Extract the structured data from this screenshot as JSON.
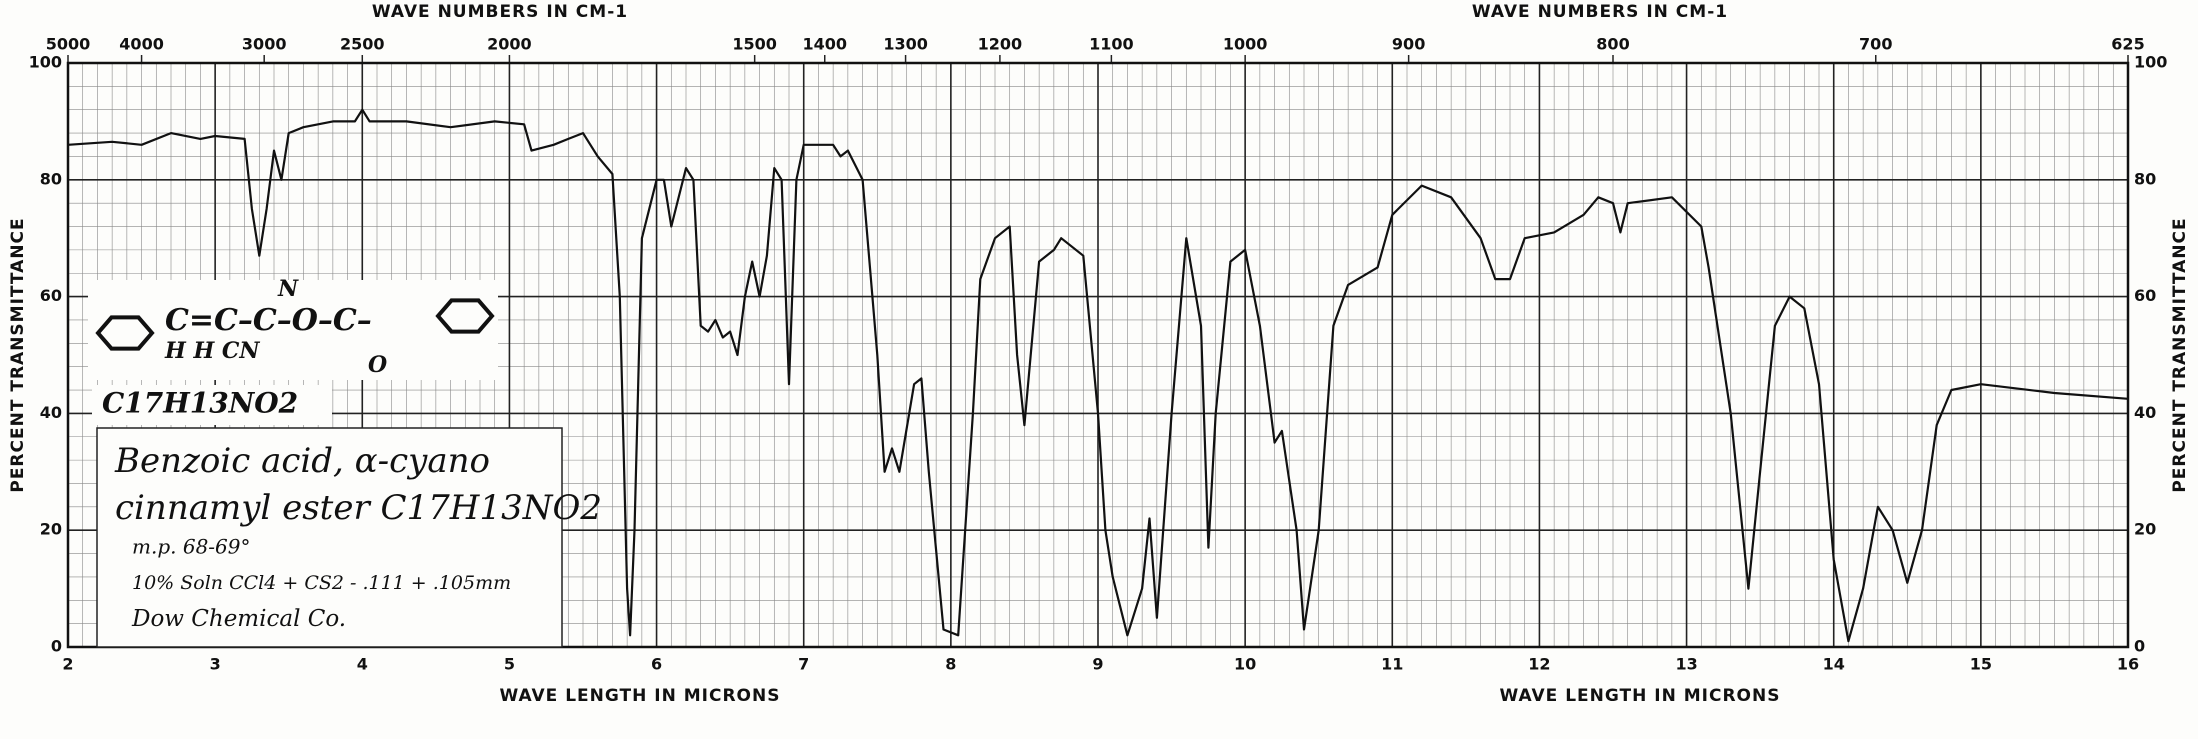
{
  "chart_data": {
    "type": "line",
    "x_label": "WAVE LENGTH IN MICRONS",
    "x2_label": "WAVE NUMBERS IN CM-1",
    "y_label": "PERCENT TRANSMITTANCE",
    "xlim": [
      2,
      16
    ],
    "xticks": [
      2,
      3,
      4,
      5,
      6,
      7,
      8,
      9,
      10,
      11,
      12,
      13,
      14,
      15,
      16
    ],
    "x2lim": [
      5000,
      625
    ],
    "x2ticks": [
      5000,
      4000,
      3000,
      2500,
      2000,
      1500,
      1400,
      1300,
      1200,
      1100,
      1000,
      900,
      800,
      700,
      625
    ],
    "ylim": [
      0,
      100
    ],
    "yticks": [
      0,
      20,
      40,
      60,
      80,
      100
    ],
    "grid": true,
    "color": "#111111",
    "x": [
      2.0,
      2.3,
      2.5,
      2.7,
      2.9,
      3.0,
      3.2,
      3.25,
      3.3,
      3.35,
      3.4,
      3.45,
      3.5,
      3.6,
      3.8,
      3.95,
      4.0,
      4.05,
      4.3,
      4.6,
      4.9,
      5.1,
      5.15,
      5.3,
      5.4,
      5.5,
      5.6,
      5.7,
      5.75,
      5.8,
      5.82,
      5.85,
      5.9,
      6.0,
      6.05,
      6.1,
      6.2,
      6.25,
      6.3,
      6.35,
      6.4,
      6.45,
      6.5,
      6.55,
      6.6,
      6.65,
      6.7,
      6.75,
      6.8,
      6.85,
      6.9,
      6.95,
      7.0,
      7.2,
      7.25,
      7.3,
      7.4,
      7.5,
      7.55,
      7.6,
      7.65,
      7.75,
      7.8,
      7.85,
      7.95,
      8.05,
      8.15,
      8.2,
      8.3,
      8.4,
      8.45,
      8.5,
      8.6,
      8.7,
      8.75,
      8.9,
      9.0,
      9.05,
      9.1,
      9.2,
      9.3,
      9.35,
      9.4,
      9.5,
      9.6,
      9.7,
      9.75,
      9.8,
      9.9,
      10.0,
      10.1,
      10.2,
      10.25,
      10.35,
      10.4,
      10.5,
      10.6,
      10.7,
      10.9,
      11.0,
      11.2,
      11.4,
      11.6,
      11.7,
      11.8,
      11.9,
      12.1,
      12.3,
      12.4,
      12.5,
      12.55,
      12.6,
      12.9,
      13.1,
      13.15,
      13.3,
      13.42,
      13.5,
      13.6,
      13.7,
      13.8,
      13.9,
      14.0,
      14.1,
      14.2,
      14.3,
      14.4,
      14.5,
      14.6,
      14.7,
      14.8,
      15.0,
      15.5,
      16.0
    ],
    "values": [
      86,
      86.5,
      86,
      88,
      87,
      87.5,
      87,
      75,
      67,
      75,
      85,
      80,
      88,
      89,
      90,
      90,
      92,
      90,
      90,
      89,
      90,
      89.5,
      85,
      86,
      87,
      88,
      84,
      81,
      60,
      10,
      2,
      20,
      70,
      80,
      80,
      72,
      82,
      80,
      55,
      54,
      56,
      53,
      54,
      50,
      60,
      66,
      60,
      67,
      82,
      80,
      45,
      80,
      86,
      86,
      84,
      85,
      80,
      50,
      30,
      34,
      30,
      45,
      46,
      30,
      3,
      2,
      40,
      63,
      70,
      72,
      50,
      38,
      66,
      68,
      70,
      67,
      40,
      20,
      12,
      2,
      10,
      22,
      5,
      40,
      70,
      55,
      17,
      40,
      66,
      68,
      55,
      35,
      37,
      20,
      3,
      20,
      55,
      62,
      65,
      74,
      79,
      77,
      70,
      63,
      63,
      70,
      71,
      74,
      77,
      76,
      71,
      76,
      77,
      72,
      65,
      40,
      10,
      30,
      55,
      60,
      58,
      45,
      15,
      1,
      10,
      24,
      20,
      11,
      20,
      38,
      44,
      45,
      43.5,
      42.5
    ],
    "formula": "C17H13NO2",
    "structure": {
      "top": "N",
      "chain": "C=C–C–O–C–",
      "below": "H   H   CN",
      "carbonyl": "O"
    },
    "notes": [
      "Benzoic acid, α-cyano",
      "cinnamyl ester  C17H13NO2",
      "m.p. 68-69°",
      "10% Soln CCl4 + CS2 - .111 + .105mm",
      "Dow Chemical Co."
    ]
  }
}
